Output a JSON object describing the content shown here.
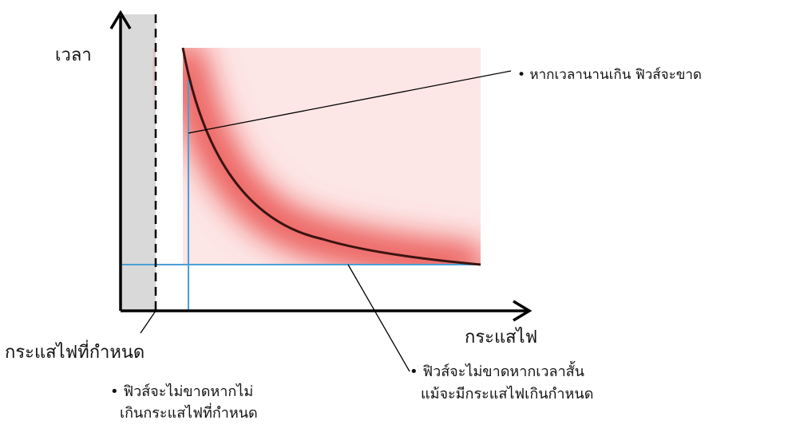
{
  "axes": {
    "y_label": "เวลา",
    "x_label": "กระแสไฟ"
  },
  "labels": {
    "rated_current": "กระแสไฟที่กำหนด",
    "blow_long": "• หากเวลานานเกิน ฟิวส์จะขาด",
    "no_blow_short_line1": "• ฟิวส์จะไม่ขาดหากเวลาสั้น",
    "no_blow_short_line2": "แม้จะมีกระแสไฟเกินกำหนด",
    "no_blow_rated_line1": "• ฟิวส์จะไม่ขาดหากไม่",
    "no_blow_rated_line2": "เกินกระแสไฟที่กำหนด"
  },
  "colors": {
    "blow_region": "#e8403e",
    "safe_region": "#d9d9d9",
    "guide_lines": "#4a9fd4",
    "curve": "#3a1410",
    "axes": "#000000"
  }
}
